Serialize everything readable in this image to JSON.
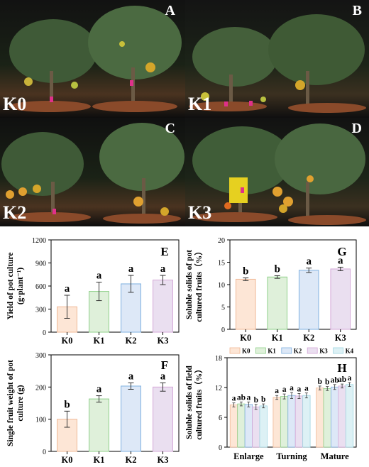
{
  "photos": [
    {
      "letter": "A",
      "key": "K0"
    },
    {
      "letter": "B",
      "key": "K1"
    },
    {
      "letter": "C",
      "key": "K2"
    },
    {
      "letter": "D",
      "key": "K3"
    }
  ],
  "colors": {
    "K0": {
      "fill": "#fde6d6",
      "stroke": "#f0b896"
    },
    "K1": {
      "fill": "#dff0da",
      "stroke": "#8fd08a"
    },
    "K2": {
      "fill": "#dde8f7",
      "stroke": "#7fb0e0"
    },
    "K3": {
      "fill": "#eadff0",
      "stroke": "#d4a8d8"
    },
    "K4": {
      "fill": "#ddf1f5",
      "stroke": "#9fd6e2"
    }
  },
  "chart_data": [
    {
      "panel": "E",
      "type": "bar",
      "ylabel_lines": [
        "Yield of pot culture",
        "(g·plant⁻¹)"
      ],
      "categories": [
        "K0",
        "K1",
        "K2",
        "K3"
      ],
      "values": [
        330,
        530,
        628,
        678
      ],
      "errors": [
        150,
        120,
        110,
        60
      ],
      "sig": [
        "a",
        "a",
        "a",
        "a"
      ],
      "ylim": [
        0,
        1200
      ],
      "yticks": [
        "0",
        "300",
        "600",
        "900",
        "1200"
      ]
    },
    {
      "panel": "F",
      "type": "bar",
      "ylabel_lines": [
        "Single fruit weight of pot",
        "culture (g)"
      ],
      "categories": [
        "K0",
        "K1",
        "K2",
        "K3"
      ],
      "values": [
        100,
        163,
        203,
        200
      ],
      "errors": [
        25,
        10,
        10,
        13
      ],
      "sig": [
        "b",
        "a",
        "a",
        "a"
      ],
      "ylim": [
        0,
        300
      ],
      "yticks": [
        "0",
        "100",
        "200",
        "300"
      ]
    },
    {
      "panel": "G",
      "type": "bar",
      "ylabel_lines": [
        "Soluble solids of pot",
        "cultured fruits（%）"
      ],
      "categories": [
        "K0",
        "K1",
        "K2",
        "K3"
      ],
      "values": [
        11.2,
        11.7,
        13.2,
        13.5
      ],
      "errors": [
        0.3,
        0.3,
        0.5,
        0.4
      ],
      "sig": [
        "b",
        "b",
        "a",
        "a"
      ],
      "ylim": [
        0,
        20
      ],
      "yticks": [
        "0",
        "5",
        "10",
        "15",
        "20"
      ]
    },
    {
      "panel": "H",
      "type": "bar",
      "ylabel_lines": [
        "Soluble solids of field",
        "cultured fruits（%）"
      ],
      "categories": [
        "Enlarge",
        "Turning",
        "Mature"
      ],
      "series": [
        {
          "name": "K0",
          "values": [
            8.5,
            10.0,
            11.9
          ],
          "errors": [
            0.4,
            0.4,
            0.4
          ]
        },
        {
          "name": "K1",
          "values": [
            8.7,
            10.2,
            11.8
          ],
          "errors": [
            0.4,
            0.5,
            0.4
          ]
        },
        {
          "name": "K2",
          "values": [
            8.6,
            10.4,
            12.1
          ],
          "errors": [
            0.5,
            0.6,
            0.5
          ]
        },
        {
          "name": "K3",
          "values": [
            8.1,
            10.3,
            12.3
          ],
          "errors": [
            0.5,
            0.5,
            0.4
          ]
        },
        {
          "name": "K4",
          "values": [
            8.3,
            10.4,
            12.6
          ],
          "errors": [
            0.4,
            0.5,
            0.4
          ]
        }
      ],
      "sig": [
        [
          "a",
          "ab",
          "a",
          "b",
          "b"
        ],
        [
          "a",
          "a",
          "a",
          "a",
          "a"
        ],
        [
          "b",
          "b",
          "ab",
          "ab",
          "a"
        ]
      ],
      "ylim": [
        0,
        18
      ],
      "yticks": [
        "0",
        "6",
        "12",
        "18"
      ],
      "legend_position": "top"
    }
  ]
}
